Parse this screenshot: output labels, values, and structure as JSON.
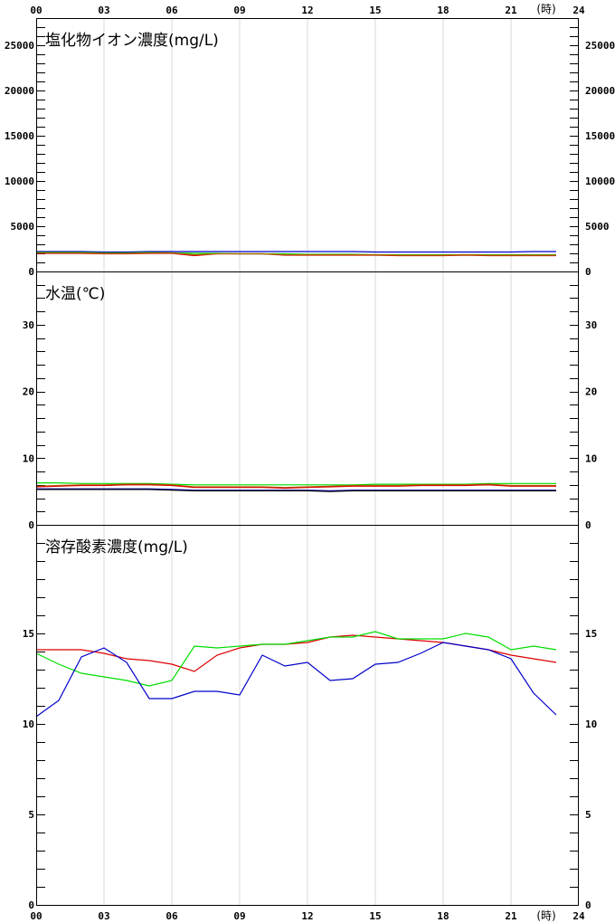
{
  "hour_axis": {
    "labels": [
      "00",
      "03",
      "06",
      "09",
      "12",
      "15",
      "18",
      "21",
      "24"
    ],
    "unit": "(時)"
  },
  "colors": {
    "red": "#dd0000",
    "green": "#00dd00",
    "blue": "#0000cc",
    "orange": "#aa6600",
    "black": "#000000"
  },
  "chart_data": [
    {
      "type": "line",
      "title": "塩化物イオン濃度(mg/L)",
      "xlim": [
        0,
        24
      ],
      "ylim": [
        0,
        28000
      ],
      "yticks": [
        0,
        5000,
        10000,
        15000,
        20000,
        25000
      ],
      "x": [
        0,
        1,
        2,
        3,
        4,
        5,
        6,
        7,
        8,
        9,
        10,
        11,
        12,
        13,
        14,
        15,
        16,
        17,
        18,
        19,
        20,
        21,
        22,
        23
      ],
      "series": [
        {
          "color": "#0000cc",
          "values": [
            2200,
            2200,
            2200,
            2150,
            2150,
            2200,
            2200,
            2200,
            2200,
            2200,
            2200,
            2200,
            2200,
            2200,
            2200,
            2150,
            2150,
            2150,
            2150,
            2150,
            2150,
            2150,
            2200,
            2200
          ]
        },
        {
          "color": "#dd0000",
          "values": [
            2000,
            2000,
            2000,
            1950,
            1950,
            2000,
            2000,
            1750,
            1950,
            1950,
            1950,
            1800,
            1800,
            1800,
            1800,
            1800,
            1750,
            1750,
            1750,
            1800,
            1750,
            1750,
            1750,
            1750
          ]
        },
        {
          "color": "#00dd00",
          "values": [
            2100,
            2100,
            2100,
            2050,
            2050,
            2100,
            2050,
            2000,
            2000,
            1950,
            1950,
            1950,
            1900,
            1900,
            1900,
            1850,
            1850,
            1850,
            1850,
            1850,
            1850,
            1850,
            1850,
            1850
          ]
        },
        {
          "color": "#aa6600",
          "values": [
            2050,
            2050,
            2050,
            2000,
            2000,
            2050,
            2050,
            1850,
            1950,
            1950,
            1950,
            1850,
            1850,
            1850,
            1850,
            1850,
            1800,
            1800,
            1800,
            1850,
            1800,
            1800,
            1800,
            1800
          ]
        }
      ]
    },
    {
      "type": "line",
      "title": "水温(℃)",
      "xlim": [
        0,
        24
      ],
      "ylim": [
        0,
        38
      ],
      "yticks": [
        0,
        10,
        20,
        30
      ],
      "x": [
        0,
        1,
        2,
        3,
        4,
        5,
        6,
        7,
        8,
        9,
        10,
        11,
        12,
        13,
        14,
        15,
        16,
        17,
        18,
        19,
        20,
        21,
        22,
        23
      ],
      "series": [
        {
          "color": "#00dd00",
          "values": [
            6.3,
            6.3,
            6.2,
            6.2,
            6.2,
            6.2,
            6.1,
            6.0,
            6.0,
            6.0,
            6.0,
            6.0,
            6.0,
            6.0,
            6.0,
            6.1,
            6.1,
            6.1,
            6.1,
            6.1,
            6.2,
            6.2,
            6.2,
            6.2
          ]
        },
        {
          "color": "#aa6600",
          "values": [
            5.8,
            5.9,
            6.0,
            6.0,
            6.1,
            6.1,
            6.0,
            5.7,
            5.7,
            5.7,
            5.7,
            5.6,
            5.7,
            5.8,
            5.9,
            5.9,
            5.9,
            6.0,
            6.0,
            6.0,
            6.1,
            5.9,
            5.9,
            5.9
          ]
        },
        {
          "color": "#dd0000",
          "values": [
            5.7,
            5.8,
            5.9,
            5.9,
            6.0,
            6.0,
            5.9,
            5.6,
            5.6,
            5.6,
            5.6,
            5.5,
            5.6,
            5.7,
            5.8,
            5.8,
            5.8,
            5.9,
            5.9,
            5.9,
            6.0,
            5.8,
            5.8,
            5.8
          ]
        },
        {
          "color": "#0000cc",
          "values": [
            5.4,
            5.4,
            5.4,
            5.4,
            5.4,
            5.4,
            5.3,
            5.2,
            5.2,
            5.2,
            5.2,
            5.2,
            5.2,
            5.1,
            5.2,
            5.2,
            5.2,
            5.2,
            5.2,
            5.2,
            5.2,
            5.2,
            5.2,
            5.2
          ]
        },
        {
          "color": "#000000",
          "values": [
            5.3,
            5.3,
            5.3,
            5.3,
            5.3,
            5.3,
            5.2,
            5.1,
            5.1,
            5.1,
            5.1,
            5.1,
            5.1,
            5.0,
            5.1,
            5.1,
            5.1,
            5.1,
            5.1,
            5.1,
            5.1,
            5.1,
            5.1,
            5.1
          ]
        }
      ]
    },
    {
      "type": "line",
      "title": "溶存酸素濃度(mg/L)",
      "xlim": [
        0,
        24
      ],
      "ylim": [
        0,
        21
      ],
      "yticks": [
        0,
        5,
        10,
        15
      ],
      "x": [
        0,
        1,
        2,
        3,
        4,
        5,
        6,
        7,
        8,
        9,
        10,
        11,
        12,
        13,
        14,
        15,
        16,
        17,
        18,
        19,
        20,
        21,
        22,
        23
      ],
      "series": [
        {
          "color": "#dd0000",
          "values": [
            14.1,
            14.1,
            14.1,
            13.9,
            13.6,
            13.5,
            13.3,
            12.9,
            13.8,
            14.2,
            14.4,
            14.4,
            14.5,
            14.8,
            14.9,
            14.8,
            14.7,
            14.6,
            14.5,
            14.3,
            14.1,
            13.8,
            13.6,
            13.4
          ]
        },
        {
          "color": "#00dd00",
          "values": [
            13.9,
            13.3,
            12.8,
            12.6,
            12.4,
            12.1,
            12.4,
            14.3,
            14.2,
            14.3,
            14.4,
            14.4,
            14.6,
            14.8,
            14.8,
            15.1,
            14.7,
            14.7,
            14.7,
            15.0,
            14.8,
            14.1,
            14.3,
            14.1
          ]
        },
        {
          "color": "#0000cc",
          "values": [
            10.4,
            11.3,
            13.7,
            14.2,
            13.4,
            11.4,
            11.4,
            11.8,
            11.8,
            11.6,
            13.8,
            13.2,
            13.4,
            12.4,
            12.5,
            13.3,
            13.4,
            13.9,
            14.5,
            14.3,
            14.1,
            13.6,
            11.7,
            10.5
          ]
        }
      ]
    }
  ]
}
